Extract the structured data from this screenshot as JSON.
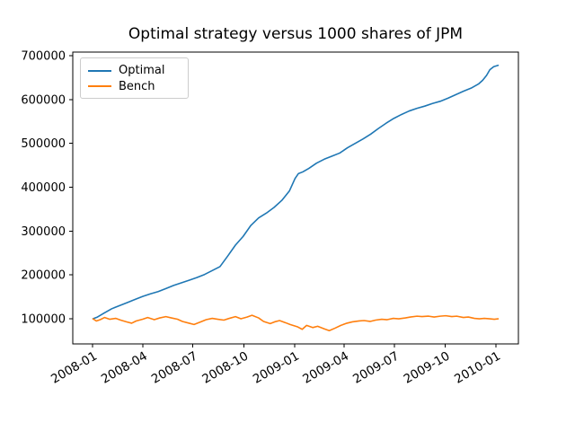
{
  "chart_data": {
    "type": "line",
    "title": "Optimal strategy versus 1000 shares of JPM",
    "xlabel": "",
    "ylabel": "",
    "grid": false,
    "legend_position": "upper left",
    "background_color": "#ffffff",
    "axis_color": "#000000",
    "legend_border_color": "#cccccc",
    "ylim": [
      42750,
      708250
    ],
    "x_margin_frac": 0.05,
    "yticks": [
      {
        "value": 100000,
        "label": "100000"
      },
      {
        "value": 200000,
        "label": "200000"
      },
      {
        "value": 300000,
        "label": "300000"
      },
      {
        "value": 400000,
        "label": "400000"
      },
      {
        "value": 500000,
        "label": "500000"
      },
      {
        "value": 600000,
        "label": "600000"
      },
      {
        "value": 700000,
        "label": "700000"
      }
    ],
    "xticks": [
      {
        "date": "2008-01-01",
        "label": "2008-01"
      },
      {
        "date": "2008-04-01",
        "label": "2008-04"
      },
      {
        "date": "2008-07-01",
        "label": "2008-07"
      },
      {
        "date": "2008-10-01",
        "label": "2008-10"
      },
      {
        "date": "2009-01-01",
        "label": "2009-01"
      },
      {
        "date": "2009-04-01",
        "label": "2009-04"
      },
      {
        "date": "2009-07-01",
        "label": "2009-07"
      },
      {
        "date": "2009-10-01",
        "label": "2009-10"
      },
      {
        "date": "2010-01-01",
        "label": "2010-01"
      }
    ],
    "series": [
      {
        "name": "Optimal",
        "color": "#1f77b4",
        "points": [
          [
            "2008-01-02",
            100000
          ],
          [
            "2008-01-10",
            104000
          ],
          [
            "2008-01-22",
            113000
          ],
          [
            "2008-02-05",
            123000
          ],
          [
            "2008-02-19",
            130000
          ],
          [
            "2008-03-04",
            137000
          ],
          [
            "2008-03-18",
            144000
          ],
          [
            "2008-04-01",
            151000
          ],
          [
            "2008-04-15",
            157000
          ],
          [
            "2008-04-29",
            162000
          ],
          [
            "2008-05-13",
            169000
          ],
          [
            "2008-05-27",
            176000
          ],
          [
            "2008-06-10",
            182000
          ],
          [
            "2008-06-24",
            188000
          ],
          [
            "2008-07-08",
            194000
          ],
          [
            "2008-07-22",
            201000
          ],
          [
            "2008-08-05",
            210000
          ],
          [
            "2008-08-19",
            219000
          ],
          [
            "2008-09-02",
            243000
          ],
          [
            "2008-09-16",
            268000
          ],
          [
            "2008-09-30",
            288000
          ],
          [
            "2008-10-14",
            313000
          ],
          [
            "2008-10-28",
            330000
          ],
          [
            "2008-11-11",
            341000
          ],
          [
            "2008-11-25",
            354000
          ],
          [
            "2008-12-09",
            370000
          ],
          [
            "2008-12-23",
            392000
          ],
          [
            "2009-01-02",
            420000
          ],
          [
            "2009-01-08",
            431000
          ],
          [
            "2009-01-16",
            435000
          ],
          [
            "2009-01-27",
            443000
          ],
          [
            "2009-02-10",
            455000
          ],
          [
            "2009-02-24",
            464000
          ],
          [
            "2009-03-10",
            471000
          ],
          [
            "2009-03-24",
            478000
          ],
          [
            "2009-04-07",
            490000
          ],
          [
            "2009-04-21",
            500000
          ],
          [
            "2009-05-05",
            510000
          ],
          [
            "2009-05-19",
            521000
          ],
          [
            "2009-06-02",
            534000
          ],
          [
            "2009-06-16",
            546000
          ],
          [
            "2009-06-30",
            557000
          ],
          [
            "2009-07-14",
            566000
          ],
          [
            "2009-07-28",
            574000
          ],
          [
            "2009-08-11",
            580000
          ],
          [
            "2009-08-25",
            585000
          ],
          [
            "2009-09-08",
            591000
          ],
          [
            "2009-09-22",
            596000
          ],
          [
            "2009-10-06",
            603000
          ],
          [
            "2009-10-20",
            611000
          ],
          [
            "2009-11-03",
            619000
          ],
          [
            "2009-11-17",
            626000
          ],
          [
            "2009-12-01",
            636000
          ],
          [
            "2009-12-08",
            644000
          ],
          [
            "2009-12-15",
            655000
          ],
          [
            "2009-12-21",
            668000
          ],
          [
            "2009-12-28",
            675000
          ],
          [
            "2010-01-05",
            678000
          ]
        ]
      },
      {
        "name": "Bench",
        "color": "#ff7f0e",
        "points": [
          [
            "2008-01-02",
            100000
          ],
          [
            "2008-01-08",
            95000
          ],
          [
            "2008-01-15",
            98000
          ],
          [
            "2008-01-23",
            103000
          ],
          [
            "2008-02-01",
            99000
          ],
          [
            "2008-02-12",
            101000
          ],
          [
            "2008-02-21",
            97000
          ],
          [
            "2008-03-03",
            93000
          ],
          [
            "2008-03-12",
            90000
          ],
          [
            "2008-03-20",
            95000
          ],
          [
            "2008-04-01",
            99000
          ],
          [
            "2008-04-10",
            103000
          ],
          [
            "2008-04-22",
            98000
          ],
          [
            "2008-05-02",
            102000
          ],
          [
            "2008-05-13",
            105000
          ],
          [
            "2008-05-23",
            102000
          ],
          [
            "2008-06-03",
            99000
          ],
          [
            "2008-06-12",
            94000
          ],
          [
            "2008-06-24",
            90000
          ],
          [
            "2008-07-03",
            87000
          ],
          [
            "2008-07-15",
            93000
          ],
          [
            "2008-07-25",
            98000
          ],
          [
            "2008-08-05",
            101000
          ],
          [
            "2008-08-15",
            99000
          ],
          [
            "2008-08-26",
            97000
          ],
          [
            "2008-09-05",
            101000
          ],
          [
            "2008-09-16",
            105000
          ],
          [
            "2008-09-26",
            100000
          ],
          [
            "2008-10-07",
            104000
          ],
          [
            "2008-10-16",
            108000
          ],
          [
            "2008-10-28",
            102000
          ],
          [
            "2008-11-06",
            94000
          ],
          [
            "2008-11-18",
            89000
          ],
          [
            "2008-11-26",
            93000
          ],
          [
            "2008-12-05",
            96000
          ],
          [
            "2008-12-16",
            91000
          ],
          [
            "2008-12-24",
            87000
          ],
          [
            "2009-01-06",
            82000
          ],
          [
            "2009-01-15",
            76000
          ],
          [
            "2009-01-23",
            85000
          ],
          [
            "2009-02-03",
            80000
          ],
          [
            "2009-02-12",
            83000
          ],
          [
            "2009-02-24",
            77000
          ],
          [
            "2009-03-05",
            73000
          ],
          [
            "2009-03-16",
            79000
          ],
          [
            "2009-03-26",
            85000
          ],
          [
            "2009-04-06",
            90000
          ],
          [
            "2009-04-16",
            93000
          ],
          [
            "2009-04-28",
            95000
          ],
          [
            "2009-05-07",
            96000
          ],
          [
            "2009-05-18",
            94000
          ],
          [
            "2009-05-28",
            97000
          ],
          [
            "2009-06-08",
            99000
          ],
          [
            "2009-06-18",
            98000
          ],
          [
            "2009-06-29",
            101000
          ],
          [
            "2009-07-09",
            100000
          ],
          [
            "2009-07-21",
            102000
          ],
          [
            "2009-07-30",
            104000
          ],
          [
            "2009-08-11",
            106000
          ],
          [
            "2009-08-20",
            105000
          ],
          [
            "2009-09-01",
            106000
          ],
          [
            "2009-09-11",
            104000
          ],
          [
            "2009-09-22",
            106000
          ],
          [
            "2009-10-02",
            107000
          ],
          [
            "2009-10-13",
            105000
          ],
          [
            "2009-10-22",
            106000
          ],
          [
            "2009-11-03",
            103000
          ],
          [
            "2009-11-12",
            104000
          ],
          [
            "2009-11-23",
            101000
          ],
          [
            "2009-12-02",
            100000
          ],
          [
            "2009-12-11",
            101000
          ],
          [
            "2009-12-21",
            100000
          ],
          [
            "2009-12-29",
            99000
          ],
          [
            "2010-01-05",
            100000
          ]
        ]
      }
    ]
  }
}
